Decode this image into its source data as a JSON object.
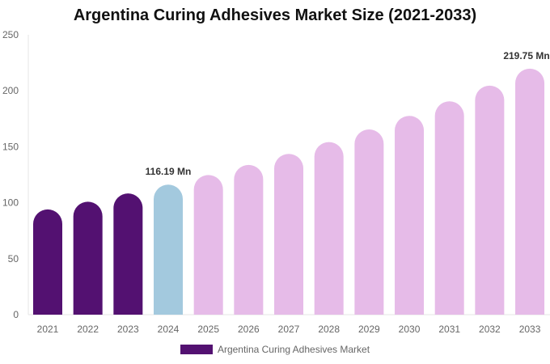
{
  "chart_data": {
    "type": "bar",
    "title": "Argentina Curing Adhesives Market Size (2021-2033)",
    "categories": [
      "2021",
      "2022",
      "2023",
      "2024",
      "2025",
      "2026",
      "2027",
      "2028",
      "2029",
      "2030",
      "2031",
      "2032",
      "2033"
    ],
    "series": [
      {
        "name": "Argentina Curing Adhesives Market",
        "values": [
          94.0,
          100.9,
          108.3,
          116.19,
          124.7,
          133.8,
          143.6,
          154.2,
          165.5,
          177.6,
          190.6,
          204.6,
          219.75
        ]
      }
    ],
    "data_labels": [
      {
        "category": "2024",
        "text": "116.19 Mn"
      },
      {
        "category": "2033",
        "text": "219.75 Mn"
      }
    ],
    "ylim": [
      0,
      250
    ],
    "yticks": [
      0,
      50,
      100,
      150,
      200,
      250
    ],
    "xlabel": "",
    "ylabel": "",
    "grid": false,
    "legend_position": "bottom",
    "colors": {
      "historical": "#531171",
      "base_year": "#a3c9de",
      "forecast": "#e6bbe8"
    }
  }
}
